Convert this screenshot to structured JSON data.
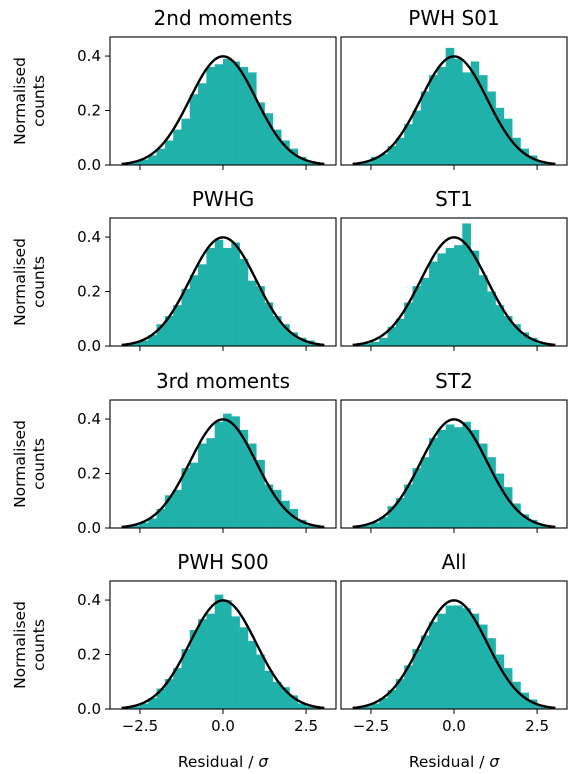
{
  "figure": {
    "ylabel_line1": "Normalised",
    "ylabel_line2": "counts",
    "xlabel_prefix": "Residual / ",
    "xlabel_symbol": "σ"
  },
  "colors": {
    "bars": "#20b2aa",
    "curve": "#000000",
    "axes": "#000000"
  },
  "chart_data": [
    {
      "type": "bar",
      "title": "2nd moments",
      "xlim": [
        -3.4,
        3.4
      ],
      "ylim": [
        0,
        0.47
      ],
      "xticks": [
        -2.5,
        0.0,
        2.5
      ],
      "xtick_labels": [
        "−2.5",
        "0.0",
        "2.5"
      ],
      "yticks": [
        0.0,
        0.2,
        0.4
      ],
      "ytick_labels": [
        "0.0",
        "0.2",
        "0.4"
      ],
      "bin_width": 0.25,
      "bin_centers": [
        -2.875,
        -2.625,
        -2.375,
        -2.125,
        -1.875,
        -1.625,
        -1.375,
        -1.125,
        -0.875,
        -0.625,
        -0.375,
        -0.125,
        0.125,
        0.375,
        0.625,
        0.875,
        1.125,
        1.375,
        1.625,
        1.875,
        2.125,
        2.375,
        2.625,
        2.875
      ],
      "values": [
        0.005,
        0.012,
        0.02,
        0.035,
        0.06,
        0.09,
        0.13,
        0.17,
        0.26,
        0.3,
        0.36,
        0.37,
        0.39,
        0.38,
        0.36,
        0.34,
        0.23,
        0.19,
        0.13,
        0.09,
        0.06,
        0.03,
        0.015,
        0.005
      ],
      "curve": "standard normal pdf"
    },
    {
      "type": "bar",
      "title": "PWH S01",
      "xlim": [
        -3.4,
        3.4
      ],
      "ylim": [
        0,
        0.47
      ],
      "xticks": [
        -2.5,
        0.0,
        2.5
      ],
      "xtick_labels": [
        "−2.5",
        "0.0",
        "2.5"
      ],
      "yticks": [
        0.0,
        0.2,
        0.4
      ],
      "ytick_labels": [
        "0.0",
        "0.2",
        "0.4"
      ],
      "bin_width": 0.25,
      "bin_centers": [
        -2.875,
        -2.625,
        -2.375,
        -2.125,
        -1.875,
        -1.625,
        -1.375,
        -1.125,
        -0.875,
        -0.625,
        -0.375,
        -0.125,
        0.125,
        0.375,
        0.625,
        0.875,
        1.125,
        1.375,
        1.625,
        1.875,
        2.125,
        2.375,
        2.625,
        2.875
      ],
      "values": [
        0.005,
        0.01,
        0.03,
        0.04,
        0.07,
        0.1,
        0.15,
        0.2,
        0.27,
        0.33,
        0.36,
        0.43,
        0.39,
        0.34,
        0.38,
        0.33,
        0.27,
        0.21,
        0.17,
        0.1,
        0.06,
        0.035,
        0.015,
        0.005
      ],
      "curve": "standard normal pdf"
    },
    {
      "type": "bar",
      "title": "PWHG",
      "xlim": [
        -3.4,
        3.4
      ],
      "ylim": [
        0,
        0.47
      ],
      "xticks": [
        -2.5,
        0.0,
        2.5
      ],
      "xtick_labels": [
        "−2.5",
        "0.0",
        "2.5"
      ],
      "yticks": [
        0.0,
        0.2,
        0.4
      ],
      "ytick_labels": [
        "0.0",
        "0.2",
        "0.4"
      ],
      "bin_width": 0.25,
      "bin_centers": [
        -2.875,
        -2.625,
        -2.375,
        -2.125,
        -1.875,
        -1.625,
        -1.375,
        -1.125,
        -0.875,
        -0.625,
        -0.375,
        -0.125,
        0.125,
        0.375,
        0.625,
        0.875,
        1.125,
        1.375,
        1.625,
        1.875,
        2.125,
        2.375,
        2.625,
        2.875
      ],
      "values": [
        0.005,
        0.015,
        0.02,
        0.04,
        0.08,
        0.11,
        0.15,
        0.21,
        0.26,
        0.3,
        0.36,
        0.39,
        0.36,
        0.38,
        0.32,
        0.24,
        0.22,
        0.16,
        0.11,
        0.08,
        0.05,
        0.03,
        0.02,
        0.005
      ],
      "curve": "standard normal pdf"
    },
    {
      "type": "bar",
      "title": "ST1",
      "xlim": [
        -3.4,
        3.4
      ],
      "ylim": [
        0,
        0.47
      ],
      "xticks": [
        -2.5,
        0.0,
        2.5
      ],
      "xtick_labels": [
        "−2.5",
        "0.0",
        "2.5"
      ],
      "yticks": [
        0.0,
        0.2,
        0.4
      ],
      "ytick_labels": [
        "0.0",
        "0.2",
        "0.4"
      ],
      "bin_width": 0.25,
      "bin_centers": [
        -2.875,
        -2.625,
        -2.375,
        -2.125,
        -1.875,
        -1.625,
        -1.375,
        -1.125,
        -0.875,
        -0.625,
        -0.375,
        -0.125,
        0.125,
        0.375,
        0.625,
        0.875,
        1.125,
        1.375,
        1.625,
        1.875,
        2.125,
        2.375,
        2.625,
        2.875
      ],
      "values": [
        0.005,
        0.01,
        0.015,
        0.03,
        0.07,
        0.1,
        0.16,
        0.22,
        0.25,
        0.31,
        0.34,
        0.36,
        0.37,
        0.45,
        0.35,
        0.26,
        0.2,
        0.15,
        0.11,
        0.08,
        0.05,
        0.03,
        0.01,
        0.005
      ],
      "curve": "standard normal pdf"
    },
    {
      "type": "bar",
      "title": "3rd moments",
      "xlim": [
        -3.4,
        3.4
      ],
      "ylim": [
        0,
        0.47
      ],
      "xticks": [
        -2.5,
        0.0,
        2.5
      ],
      "xtick_labels": [
        "−2.5",
        "0.0",
        "2.5"
      ],
      "yticks": [
        0.0,
        0.2,
        0.4
      ],
      "ytick_labels": [
        "0.0",
        "0.2",
        "0.4"
      ],
      "bin_width": 0.25,
      "bin_centers": [
        -2.875,
        -2.625,
        -2.375,
        -2.125,
        -1.875,
        -1.625,
        -1.375,
        -1.125,
        -0.875,
        -0.625,
        -0.375,
        -0.125,
        0.125,
        0.375,
        0.625,
        0.875,
        1.125,
        1.375,
        1.625,
        1.875,
        2.125,
        2.375,
        2.625,
        2.875
      ],
      "values": [
        0.005,
        0.01,
        0.02,
        0.035,
        0.07,
        0.12,
        0.14,
        0.22,
        0.24,
        0.31,
        0.33,
        0.39,
        0.42,
        0.41,
        0.36,
        0.31,
        0.25,
        0.16,
        0.14,
        0.1,
        0.07,
        0.03,
        0.01,
        0.005
      ],
      "curve": "standard normal pdf"
    },
    {
      "type": "bar",
      "title": "ST2",
      "xlim": [
        -3.4,
        3.4
      ],
      "ylim": [
        0,
        0.47
      ],
      "xticks": [
        -2.5,
        0.0,
        2.5
      ],
      "xtick_labels": [
        "−2.5",
        "0.0",
        "2.5"
      ],
      "yticks": [
        0.0,
        0.2,
        0.4
      ],
      "ytick_labels": [
        "0.0",
        "0.2",
        "0.4"
      ],
      "bin_width": 0.25,
      "bin_centers": [
        -2.875,
        -2.625,
        -2.375,
        -2.125,
        -1.875,
        -1.625,
        -1.375,
        -1.125,
        -0.875,
        -0.625,
        -0.375,
        -0.125,
        0.125,
        0.375,
        0.625,
        0.875,
        1.125,
        1.375,
        1.625,
        1.875,
        2.125,
        2.375,
        2.625,
        2.875
      ],
      "values": [
        0.005,
        0.01,
        0.02,
        0.04,
        0.08,
        0.11,
        0.16,
        0.22,
        0.26,
        0.33,
        0.36,
        0.38,
        0.37,
        0.39,
        0.36,
        0.31,
        0.26,
        0.2,
        0.15,
        0.09,
        0.05,
        0.03,
        0.01,
        0.005
      ],
      "curve": "standard normal pdf"
    },
    {
      "type": "bar",
      "title": "PWH S00",
      "xlim": [
        -3.4,
        3.4
      ],
      "ylim": [
        0,
        0.47
      ],
      "xticks": [
        -2.5,
        0.0,
        2.5
      ],
      "xtick_labels": [
        "−2.5",
        "0.0",
        "2.5"
      ],
      "yticks": [
        0.0,
        0.2,
        0.4
      ],
      "ytick_labels": [
        "0.0",
        "0.2",
        "0.4"
      ],
      "bin_width": 0.25,
      "bin_centers": [
        -2.875,
        -2.625,
        -2.375,
        -2.125,
        -1.875,
        -1.625,
        -1.375,
        -1.125,
        -0.875,
        -0.625,
        -0.375,
        -0.125,
        0.125,
        0.375,
        0.625,
        0.875,
        1.125,
        1.375,
        1.625,
        1.875,
        2.125,
        2.375,
        2.625,
        2.875
      ],
      "values": [
        0.005,
        0.01,
        0.02,
        0.04,
        0.075,
        0.11,
        0.15,
        0.22,
        0.29,
        0.33,
        0.35,
        0.42,
        0.4,
        0.34,
        0.3,
        0.25,
        0.2,
        0.14,
        0.1,
        0.08,
        0.05,
        0.02,
        0.01,
        0.005
      ],
      "curve": "standard normal pdf"
    },
    {
      "type": "bar",
      "title": "All",
      "xlim": [
        -3.4,
        3.4
      ],
      "ylim": [
        0,
        0.47
      ],
      "xticks": [
        -2.5,
        0.0,
        2.5
      ],
      "xtick_labels": [
        "−2.5",
        "0.0",
        "2.5"
      ],
      "yticks": [
        0.0,
        0.2,
        0.4
      ],
      "ytick_labels": [
        "0.0",
        "0.2",
        "0.4"
      ],
      "bin_width": 0.25,
      "bin_centers": [
        -2.875,
        -2.625,
        -2.375,
        -2.125,
        -1.875,
        -1.625,
        -1.375,
        -1.125,
        -0.875,
        -0.625,
        -0.375,
        -0.125,
        0.125,
        0.375,
        0.625,
        0.875,
        1.125,
        1.375,
        1.625,
        1.875,
        2.125,
        2.375,
        2.625,
        2.875
      ],
      "values": [
        0.005,
        0.01,
        0.02,
        0.04,
        0.07,
        0.11,
        0.16,
        0.22,
        0.27,
        0.32,
        0.35,
        0.38,
        0.38,
        0.37,
        0.35,
        0.31,
        0.26,
        0.2,
        0.15,
        0.1,
        0.06,
        0.035,
        0.015,
        0.005
      ],
      "curve": "standard normal pdf"
    }
  ]
}
